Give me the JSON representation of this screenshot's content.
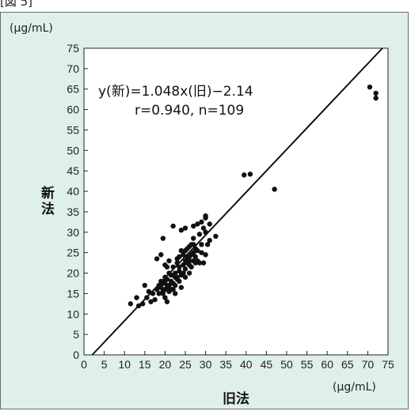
{
  "figure": {
    "bracket_text": "[図 5]"
  },
  "chart_data": {
    "type": "scatter",
    "title": "",
    "xlabel": "旧法",
    "ylabel": "新法",
    "x_unit": "(μg/mL)",
    "y_unit": "(μg/mL)",
    "xlim": [
      0,
      75
    ],
    "ylim": [
      0,
      75
    ],
    "xticks": [
      "0",
      "5",
      "10",
      "15",
      "20",
      "25",
      "30",
      "35",
      "40",
      "45",
      "50",
      "55",
      "60",
      "65",
      "70",
      "75"
    ],
    "yticks": [
      "0",
      "5",
      "10",
      "15",
      "20",
      "25",
      "30",
      "35",
      "40",
      "45",
      "50",
      "55",
      "60",
      "65",
      "70",
      "75"
    ],
    "grid": false,
    "annotations": {
      "equation": "y(新)=1.048x(旧)−2.14",
      "stats": "r=0.940, n=109"
    },
    "regression": {
      "slope": 1.048,
      "intercept": -2.14
    },
    "points": [
      [
        11.5,
        12.5
      ],
      [
        13,
        14
      ],
      [
        13.5,
        12
      ],
      [
        14.5,
        12.5
      ],
      [
        15,
        17
      ],
      [
        15.5,
        14
      ],
      [
        16,
        15.5
      ],
      [
        16.5,
        13
      ],
      [
        17,
        15
      ],
      [
        17.5,
        13.5
      ],
      [
        18,
        16
      ],
      [
        18,
        23.5
      ],
      [
        18.5,
        17
      ],
      [
        18.5,
        15
      ],
      [
        19,
        18
      ],
      [
        19,
        24.5
      ],
      [
        19,
        16.5
      ],
      [
        19.5,
        17.5
      ],
      [
        19.5,
        15
      ],
      [
        19.5,
        28.5
      ],
      [
        20,
        22
      ],
      [
        20,
        19
      ],
      [
        20,
        16
      ],
      [
        20,
        14
      ],
      [
        20.5,
        21.5
      ],
      [
        20.5,
        13
      ],
      [
        20.5,
        18.5
      ],
      [
        20.5,
        17
      ],
      [
        21,
        20
      ],
      [
        21,
        17
      ],
      [
        21,
        15.5
      ],
      [
        21,
        16.5
      ],
      [
        21.5,
        18
      ],
      [
        21.5,
        16
      ],
      [
        21.5,
        19.5
      ],
      [
        22,
        17.5
      ],
      [
        22,
        16
      ],
      [
        22,
        31.5
      ],
      [
        22,
        21.5
      ],
      [
        22.5,
        20
      ],
      [
        22.5,
        17
      ],
      [
        22.5,
        15
      ],
      [
        23,
        18.5
      ],
      [
        23,
        22.5
      ],
      [
        23,
        23.5
      ],
      [
        23,
        19
      ],
      [
        23.5,
        20.5
      ],
      [
        23.5,
        24
      ],
      [
        23.5,
        18
      ],
      [
        24,
        30.5
      ],
      [
        24,
        19.5
      ],
      [
        24,
        16.5
      ],
      [
        24,
        25.5
      ],
      [
        24.5,
        22
      ],
      [
        24.5,
        24.5
      ],
      [
        24.5,
        20
      ],
      [
        25,
        31
      ],
      [
        25,
        23
      ],
      [
        25,
        21
      ],
      [
        25,
        19
      ],
      [
        25,
        25.5
      ],
      [
        25.5,
        26
      ],
      [
        25.5,
        24
      ],
      [
        25.5,
        22.5
      ],
      [
        26,
        20
      ],
      [
        26,
        26.5
      ],
      [
        26,
        23
      ],
      [
        26,
        24
      ],
      [
        26.5,
        27
      ],
      [
        26.5,
        21.5
      ],
      [
        26.5,
        24.5
      ],
      [
        27,
        25
      ],
      [
        27,
        23
      ],
      [
        27,
        28.5
      ],
      [
        27,
        31.5
      ],
      [
        27.5,
        22.5
      ],
      [
        27.5,
        26
      ],
      [
        27.5,
        24
      ],
      [
        28,
        25.5
      ],
      [
        28,
        23
      ],
      [
        28,
        32
      ],
      [
        28.5,
        22.5
      ],
      [
        28.5,
        29.5
      ],
      [
        29,
        32.5
      ],
      [
        29,
        25
      ],
      [
        29,
        27
      ],
      [
        29.5,
        31
      ],
      [
        29.5,
        22.5
      ],
      [
        30,
        33.5
      ],
      [
        30,
        34
      ],
      [
        30,
        30
      ],
      [
        30,
        24.5
      ],
      [
        30.5,
        27
      ],
      [
        31,
        32
      ],
      [
        31,
        28
      ],
      [
        32.5,
        29
      ],
      [
        19.5,
        15.5
      ],
      [
        20,
        18
      ],
      [
        21,
        23
      ],
      [
        22.5,
        19
      ],
      [
        23.5,
        21.5
      ],
      [
        26,
        22
      ],
      [
        27,
        27
      ],
      [
        39.5,
        44
      ],
      [
        41,
        44.2
      ],
      [
        47,
        40.5
      ],
      [
        70.5,
        65.5
      ],
      [
        72,
        64
      ],
      [
        72,
        62.8
      ]
    ]
  }
}
